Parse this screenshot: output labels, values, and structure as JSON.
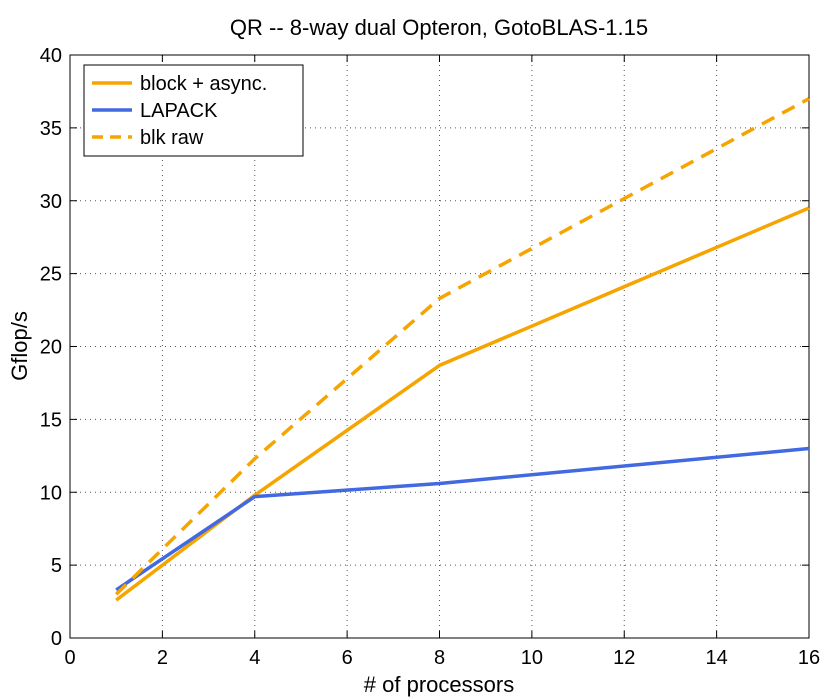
{
  "chart_data": {
    "type": "line",
    "title": "QR -- 8-way dual Opteron, GotoBLAS-1.15",
    "xlabel": "# of processors",
    "ylabel": "Gflop/s",
    "xlim": [
      0,
      16
    ],
    "ylim": [
      0,
      40
    ],
    "xticks": [
      0,
      2,
      4,
      6,
      8,
      10,
      12,
      14,
      16
    ],
    "yticks": [
      0,
      5,
      10,
      15,
      20,
      25,
      30,
      35,
      40
    ],
    "grid": true,
    "legend_position": "top-left",
    "series": [
      {
        "name": "block + async.",
        "color": "#f5a400",
        "style": "solid",
        "x": [
          1,
          4,
          8,
          16
        ],
        "y": [
          2.6,
          9.8,
          18.7,
          29.5
        ]
      },
      {
        "name": "LAPACK",
        "color": "#4169e1",
        "style": "solid",
        "x": [
          1,
          4,
          8,
          16
        ],
        "y": [
          3.3,
          9.7,
          10.6,
          13.0
        ]
      },
      {
        "name": "blk raw",
        "color": "#f5a400",
        "style": "dashed",
        "x": [
          1,
          4,
          8,
          16
        ],
        "y": [
          3.0,
          12.3,
          23.3,
          37.0
        ]
      }
    ]
  }
}
